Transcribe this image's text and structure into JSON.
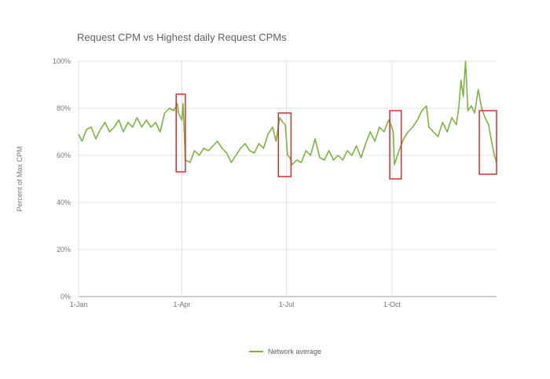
{
  "chart_data": {
    "type": "line",
    "title": "Request CPM vs Highest daily Request CPMs",
    "ylabel": "Percent of Max CPM",
    "xlabel": "",
    "ylim": [
      0,
      100
    ],
    "y_ticks": [
      {
        "value": 0,
        "label": "0%"
      },
      {
        "value": 20,
        "label": "20%"
      },
      {
        "value": 40,
        "label": "40%"
      },
      {
        "value": 60,
        "label": "60%"
      },
      {
        "value": 80,
        "label": "80%"
      },
      {
        "value": 100,
        "label": "100%"
      }
    ],
    "xlim": [
      "1-Jan",
      "31-Dec"
    ],
    "x_ticks": [
      {
        "date": "1-Jan",
        "label": "1-Jan"
      },
      {
        "date": "1-Apr",
        "label": "1-Apr"
      },
      {
        "date": "1-Jul",
        "label": "1-Jul"
      },
      {
        "date": "1-Oct",
        "label": "1-Oct"
      }
    ],
    "grid": true,
    "legend_position": "bottom",
    "series": [
      {
        "name": "Network average",
        "color": "#7cb342",
        "points": [
          [
            "1-Jan",
            69
          ],
          [
            "4-Jan",
            66
          ],
          [
            "8-Jan",
            71
          ],
          [
            "12-Jan",
            72
          ],
          [
            "16-Jan",
            67
          ],
          [
            "20-Jan",
            71
          ],
          [
            "24-Jan",
            74
          ],
          [
            "28-Jan",
            70
          ],
          [
            "1-Feb",
            72
          ],
          [
            "5-Feb",
            75
          ],
          [
            "9-Feb",
            70
          ],
          [
            "13-Feb",
            74
          ],
          [
            "17-Feb",
            72
          ],
          [
            "21-Feb",
            76
          ],
          [
            "25-Feb",
            72
          ],
          [
            "1-Mar",
            75
          ],
          [
            "5-Mar",
            72
          ],
          [
            "9-Mar",
            74
          ],
          [
            "13-Mar",
            70
          ],
          [
            "17-Mar",
            78
          ],
          [
            "21-Mar",
            80
          ],
          [
            "25-Mar",
            79
          ],
          [
            "28-Mar",
            82
          ],
          [
            "29-Mar",
            78
          ],
          [
            "1-Apr",
            75
          ],
          [
            "2-Apr",
            82
          ],
          [
            "4-Apr",
            58
          ],
          [
            "8-Apr",
            57
          ],
          [
            "12-Apr",
            62
          ],
          [
            "16-Apr",
            60
          ],
          [
            "20-Apr",
            63
          ],
          [
            "24-Apr",
            62
          ],
          [
            "28-Apr",
            64
          ],
          [
            "2-May",
            66
          ],
          [
            "6-May",
            63
          ],
          [
            "10-May",
            61
          ],
          [
            "14-May",
            57
          ],
          [
            "18-May",
            60
          ],
          [
            "22-May",
            63
          ],
          [
            "26-May",
            65
          ],
          [
            "30-May",
            62
          ],
          [
            "3-Jun",
            61
          ],
          [
            "7-Jun",
            65
          ],
          [
            "11-Jun",
            63
          ],
          [
            "15-Jun",
            69
          ],
          [
            "19-Jun",
            72
          ],
          [
            "22-Jun",
            66
          ],
          [
            "25-Jun",
            76
          ],
          [
            "28-Jun",
            74
          ],
          [
            "30-Jun",
            73
          ],
          [
            "2-Jul",
            60
          ],
          [
            "4-Jul",
            59
          ],
          [
            "6-Jul",
            56
          ],
          [
            "10-Jul",
            58
          ],
          [
            "14-Jul",
            57
          ],
          [
            "18-Jul",
            62
          ],
          [
            "22-Jul",
            60
          ],
          [
            "26-Jul",
            67
          ],
          [
            "30-Jul",
            59
          ],
          [
            "3-Aug",
            58
          ],
          [
            "7-Aug",
            62
          ],
          [
            "11-Aug",
            58
          ],
          [
            "15-Aug",
            60
          ],
          [
            "19-Aug",
            58
          ],
          [
            "23-Aug",
            62
          ],
          [
            "27-Aug",
            60
          ],
          [
            "31-Aug",
            64
          ],
          [
            "4-Sep",
            59
          ],
          [
            "8-Sep",
            65
          ],
          [
            "12-Sep",
            70
          ],
          [
            "16-Sep",
            66
          ],
          [
            "20-Sep",
            72
          ],
          [
            "24-Sep",
            70
          ],
          [
            "28-Sep",
            75
          ],
          [
            "30-Sep",
            73
          ],
          [
            "2-Oct",
            70
          ],
          [
            "3-Oct",
            56
          ],
          [
            "7-Oct",
            62
          ],
          [
            "11-Oct",
            67
          ],
          [
            "15-Oct",
            70
          ],
          [
            "19-Oct",
            72
          ],
          [
            "23-Oct",
            75
          ],
          [
            "27-Oct",
            79
          ],
          [
            "31-Oct",
            81
          ],
          [
            "2-Nov",
            72
          ],
          [
            "6-Nov",
            70
          ],
          [
            "10-Nov",
            68
          ],
          [
            "14-Nov",
            74
          ],
          [
            "18-Nov",
            70
          ],
          [
            "22-Nov",
            76
          ],
          [
            "26-Nov",
            73
          ],
          [
            "28-Nov",
            80
          ],
          [
            "30-Nov",
            92
          ],
          [
            "2-Dec",
            85
          ],
          [
            "4-Dec",
            100
          ],
          [
            "6-Dec",
            79
          ],
          [
            "9-Dec",
            81
          ],
          [
            "12-Dec",
            78
          ],
          [
            "15-Dec",
            88
          ],
          [
            "18-Dec",
            80
          ],
          [
            "21-Dec",
            76
          ],
          [
            "24-Dec",
            73
          ],
          [
            "27-Dec",
            65
          ],
          [
            "29-Dec",
            60
          ],
          [
            "31-Dec",
            57
          ]
        ]
      }
    ],
    "annotations": [
      {
        "type": "box",
        "color": "#d32f2f",
        "x_from": "27-Mar",
        "x_to": "4-Apr",
        "y_from": 53,
        "y_to": 86
      },
      {
        "type": "box",
        "color": "#d32f2f",
        "x_from": "24-Jun",
        "x_to": "5-Jul",
        "y_from": 51,
        "y_to": 78
      },
      {
        "type": "box",
        "color": "#d32f2f",
        "x_from": "29-Sep",
        "x_to": "9-Oct",
        "y_from": 50,
        "y_to": 79
      },
      {
        "type": "box",
        "color": "#d32f2f",
        "x_from": "16-Dec",
        "x_to": "31-Dec",
        "y_from": 52,
        "y_to": 79
      }
    ],
    "colors": {
      "grid": "#e0e0e0",
      "axis_text": "#757575",
      "title": "#616161",
      "axis_line": "#9e9e9e"
    }
  }
}
